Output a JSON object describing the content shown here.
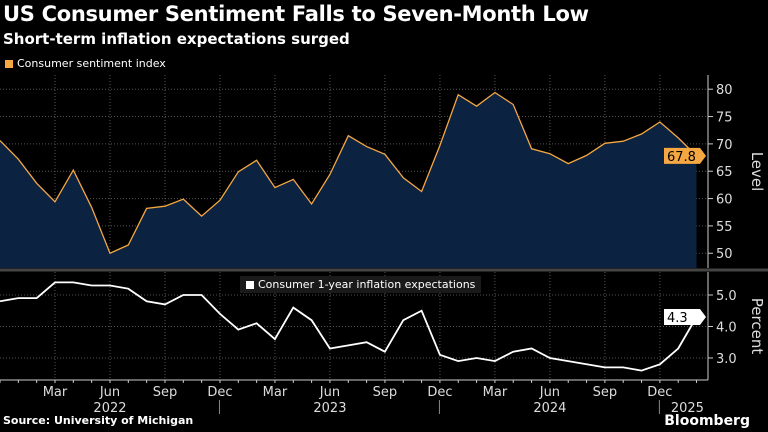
{
  "title": "US Consumer Sentiment Falls to Seven-Month Low",
  "subtitle": "Short-term inflation expectations surged",
  "source": "Source: University of Michigan",
  "brand": "Bloomberg",
  "chart_data": [
    {
      "type": "area",
      "series": [
        {
          "name": "Consumer sentiment index",
          "color": "#f5a742",
          "fill": "#0b2240",
          "values": [
            70.6,
            67.2,
            62.8,
            59.4,
            65.2,
            58.4,
            50.0,
            51.5,
            58.2,
            58.6,
            59.9,
            56.8,
            59.7,
            64.9,
            67.0,
            62.0,
            63.5,
            59.0,
            64.4,
            71.5,
            69.5,
            68.1,
            63.8,
            61.3,
            69.7,
            79.0,
            76.9,
            79.4,
            77.2,
            69.1,
            68.2,
            66.4,
            67.9,
            70.1,
            70.5,
            71.8,
            74.0,
            71.1,
            67.8
          ]
        }
      ],
      "x": [
        "2021-12",
        "2022-01",
        "2022-02",
        "2022-03",
        "2022-04",
        "2022-05",
        "2022-06",
        "2022-07",
        "2022-08",
        "2022-09",
        "2022-10",
        "2022-11",
        "2022-12",
        "2023-01",
        "2023-02",
        "2023-03",
        "2023-04",
        "2023-05",
        "2023-06",
        "2023-07",
        "2023-08",
        "2023-09",
        "2023-10",
        "2023-11",
        "2023-12",
        "2024-01",
        "2024-02",
        "2024-03",
        "2024-04",
        "2024-05",
        "2024-06",
        "2024-07",
        "2024-08",
        "2024-09",
        "2024-10",
        "2024-11",
        "2024-12",
        "2025-01",
        "2025-02"
      ],
      "ylabel": "Level",
      "yticks": [
        "50",
        "55",
        "60",
        "65",
        "70",
        "75",
        "80"
      ],
      "ylim": [
        47.3,
        82.6
      ],
      "last_label": "67.8",
      "grid": true
    },
    {
      "type": "line",
      "series": [
        {
          "name": "Consumer 1-year inflation expectations",
          "color": "#ffffff",
          "values": [
            4.8,
            4.9,
            4.9,
            5.4,
            5.4,
            5.3,
            5.3,
            5.2,
            4.8,
            4.7,
            5.0,
            5.0,
            4.4,
            3.9,
            4.1,
            3.6,
            4.6,
            4.2,
            3.3,
            3.4,
            3.5,
            3.2,
            4.2,
            4.5,
            3.1,
            2.9,
            3.0,
            2.9,
            3.2,
            3.3,
            3.0,
            2.9,
            2.8,
            2.7,
            2.7,
            2.6,
            2.8,
            3.3,
            4.3
          ]
        }
      ],
      "ylabel": "Percent",
      "yticks": [
        "3.0",
        "4.0",
        "5.0"
      ],
      "ylim": [
        2.3,
        5.73
      ],
      "last_label": "4.3",
      "grid": true,
      "xticks": [
        "Mar",
        "Jun",
        "Sep",
        "Dec",
        "Mar",
        "Jun",
        "Sep",
        "Dec",
        "Mar",
        "Jun",
        "Sep",
        "Dec"
      ],
      "years": [
        "2022",
        "2023",
        "2024",
        "2025"
      ]
    }
  ]
}
